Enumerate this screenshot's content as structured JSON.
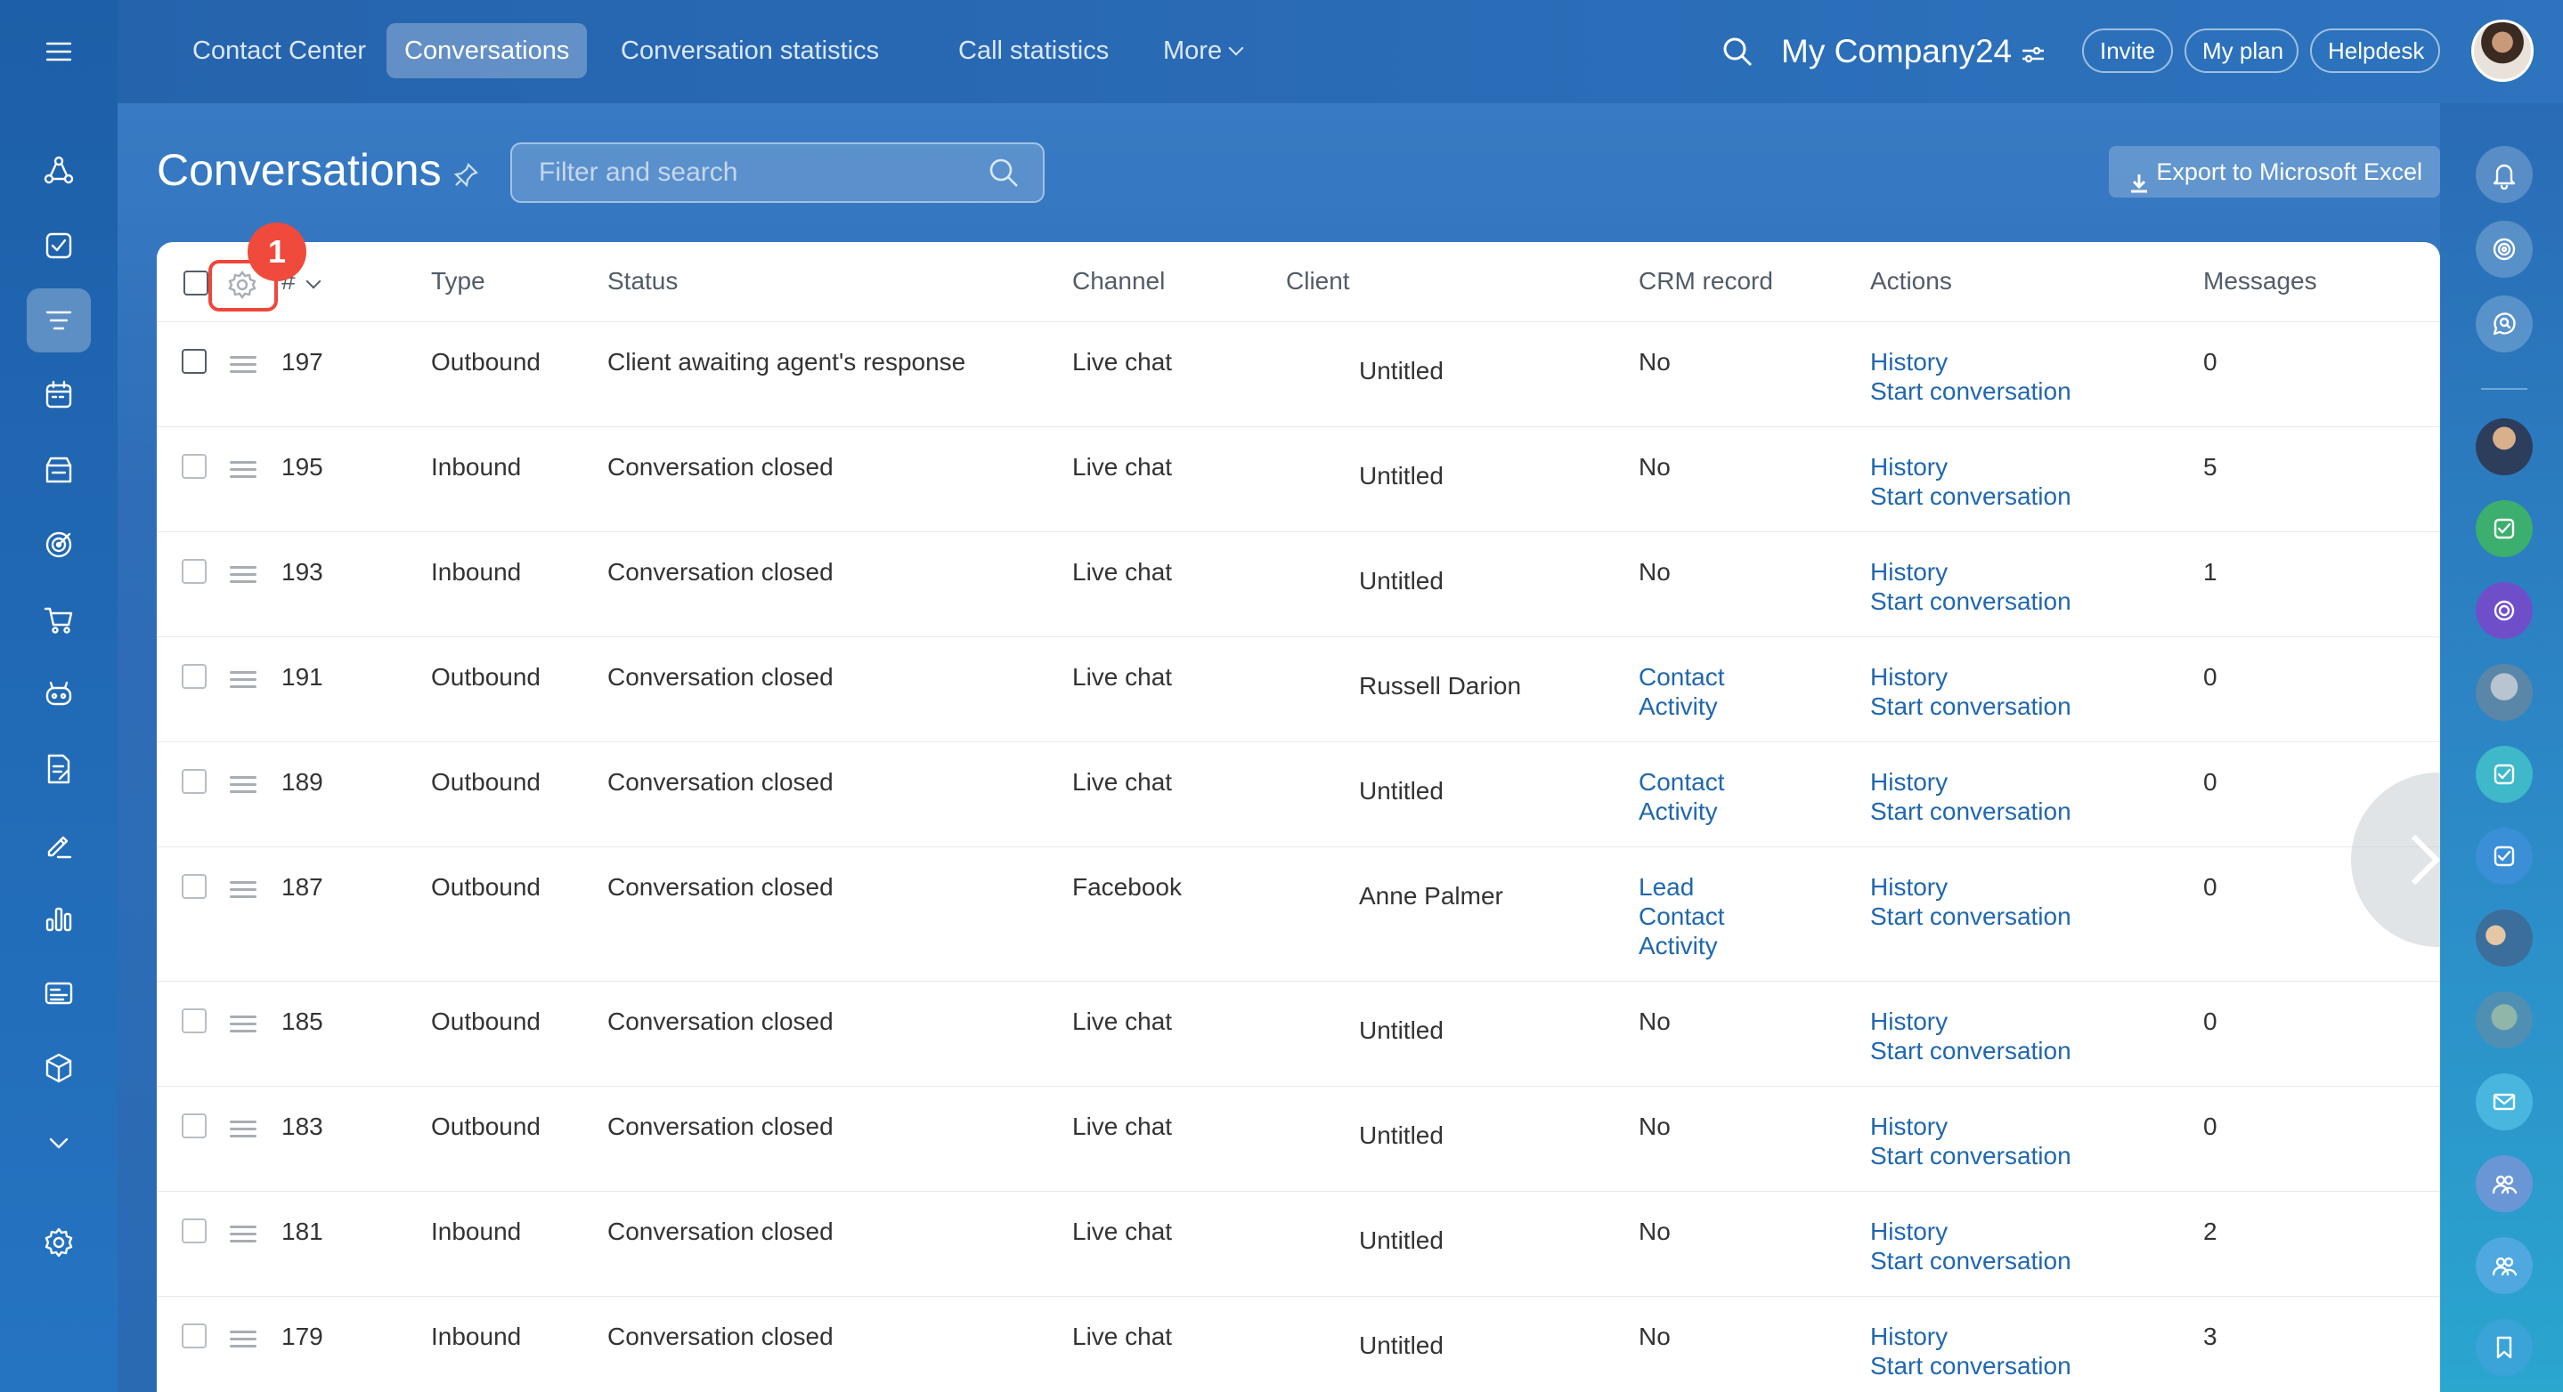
{
  "topbar": {
    "nav": [
      "Contact Center",
      "Conversations",
      "Conversation statistics",
      "Call statistics",
      "More"
    ],
    "active_nav": "Conversations",
    "company": "My Company24",
    "buttons": {
      "invite": "Invite",
      "plan": "My plan",
      "helpdesk": "Helpdesk"
    }
  },
  "page": {
    "title": "Conversations",
    "filter_placeholder": "Filter and search",
    "export_label": "Export to Microsoft Excel"
  },
  "annotation_badge": "1",
  "table": {
    "headers": {
      "hash": "#",
      "type": "Type",
      "status": "Status",
      "channel": "Channel",
      "client": "Client",
      "crm": "CRM record",
      "actions": "Actions",
      "messages": "Messages"
    },
    "rows": [
      {
        "id": "197",
        "type": "Outbound",
        "status": "Client awaiting agent's response",
        "channel": "Live chat",
        "client": "Untitled",
        "crm": [
          "No"
        ],
        "crm_is_link": false,
        "actions": [
          "History",
          "Start conversation"
        ],
        "messages": "0"
      },
      {
        "id": "195",
        "type": "Inbound",
        "status": "Conversation closed",
        "channel": "Live chat",
        "client": "Untitled",
        "crm": [
          "No"
        ],
        "crm_is_link": false,
        "actions": [
          "History",
          "Start conversation"
        ],
        "messages": "5"
      },
      {
        "id": "193",
        "type": "Inbound",
        "status": "Conversation closed",
        "channel": "Live chat",
        "client": "Untitled",
        "crm": [
          "No"
        ],
        "crm_is_link": false,
        "actions": [
          "History",
          "Start conversation"
        ],
        "messages": "1"
      },
      {
        "id": "191",
        "type": "Outbound",
        "status": "Conversation closed",
        "channel": "Live chat",
        "client": "Russell Darion",
        "crm": [
          "Contact",
          "Activity"
        ],
        "crm_is_link": true,
        "actions": [
          "History",
          "Start conversation"
        ],
        "messages": "0"
      },
      {
        "id": "189",
        "type": "Outbound",
        "status": "Conversation closed",
        "channel": "Live chat",
        "client": "Untitled",
        "crm": [
          "Contact",
          "Activity"
        ],
        "crm_is_link": true,
        "actions": [
          "History",
          "Start conversation"
        ],
        "messages": "0"
      },
      {
        "id": "187",
        "type": "Outbound",
        "status": "Conversation closed",
        "channel": "Facebook",
        "client": "Anne Palmer",
        "crm": [
          "Lead",
          "Contact",
          "Activity"
        ],
        "crm_is_link": true,
        "actions": [
          "History",
          "Start conversation"
        ],
        "messages": "0"
      },
      {
        "id": "185",
        "type": "Outbound",
        "status": "Conversation closed",
        "channel": "Live chat",
        "client": "Untitled",
        "crm": [
          "No"
        ],
        "crm_is_link": false,
        "actions": [
          "History",
          "Start conversation"
        ],
        "messages": "0"
      },
      {
        "id": "183",
        "type": "Outbound",
        "status": "Conversation closed",
        "channel": "Live chat",
        "client": "Untitled",
        "crm": [
          "No"
        ],
        "crm_is_link": false,
        "actions": [
          "History",
          "Start conversation"
        ],
        "messages": "0"
      },
      {
        "id": "181",
        "type": "Inbound",
        "status": "Conversation closed",
        "channel": "Live chat",
        "client": "Untitled",
        "crm": [
          "No"
        ],
        "crm_is_link": false,
        "actions": [
          "History",
          "Start conversation"
        ],
        "messages": "2"
      },
      {
        "id": "179",
        "type": "Inbound",
        "status": "Conversation closed",
        "channel": "Live chat",
        "client": "Untitled",
        "crm": [
          "No"
        ],
        "crm_is_link": false,
        "actions": [
          "History",
          "Start conversation"
        ],
        "messages": "3"
      }
    ]
  },
  "colors": {
    "link": "#2067b0",
    "badge": "#ef4a3c",
    "sidebar": "#1d5fa8"
  },
  "left_sidebar_icons": [
    "menu-icon",
    "flow-icon",
    "tasks-icon",
    "contact-center-icon",
    "calendar-icon",
    "drive-icon",
    "target-icon",
    "cart-icon",
    "bot-icon",
    "document-icon",
    "sign-icon",
    "analytics-icon",
    "sites-icon",
    "box-icon",
    "chevron-down-icon",
    "settings-icon"
  ],
  "right_sidebar_icons": [
    "bell-icon",
    "copilot-icon",
    "chat-search-icon",
    "avatar",
    "task-icon",
    "copilot-chat-icon",
    "avatar",
    "task-icon",
    "task-icon",
    "avatar",
    "avatar",
    "mail-icon",
    "group-icon",
    "group-icon",
    "bookmark-icon"
  ]
}
